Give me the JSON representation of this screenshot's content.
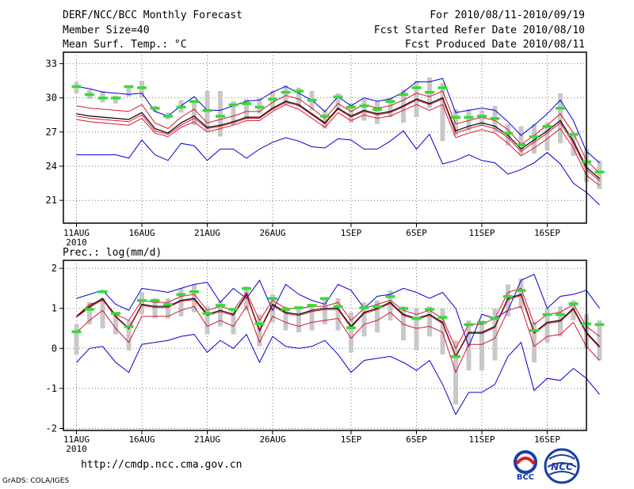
{
  "header": {
    "title": "DERF/NCC/BCC Monthly Forecast",
    "member_size": "Member Size=40",
    "variable1": "Mean Surf. Temp.: °C",
    "period": "For 2010/08/11-2010/09/19",
    "started": "Fcst Started Refer Date 2010/08/10",
    "produced": "Fcst Produced Date 2010/08/11"
  },
  "footer": {
    "url": "http://cmdp.ncc.cma.gov.cn",
    "credit": "GrADS: COLA/IGES",
    "logo_bcc": "BCC",
    "logo_ncc": "NCC"
  },
  "colors": {
    "max_min": "#0000d8",
    "percentile": "#d81830",
    "mean": "#000000",
    "spread_box": "#c8c8c8",
    "observed": "#33dd33",
    "grid": "#777777"
  },
  "chart_data": [
    {
      "type": "line",
      "title": "Mean Surf. Temp.: °C",
      "xlabel": "",
      "ylabel": "",
      "x_ticks": [
        {
          "day": 0,
          "label": "11AUG",
          "sub": "2010"
        },
        {
          "day": 5,
          "label": "16AUG"
        },
        {
          "day": 10,
          "label": "21AUG"
        },
        {
          "day": 15,
          "label": "26AUG"
        },
        {
          "day": 21,
          "label": "1SEP"
        },
        {
          "day": 26,
          "label": "6SEP"
        },
        {
          "day": 31,
          "label": "11SEP"
        },
        {
          "day": 36,
          "label": "16SEP"
        }
      ],
      "xlim": [
        -1,
        39
      ],
      "y_ticks": [
        21,
        24,
        27,
        30,
        33
      ],
      "ylim": [
        19,
        34
      ],
      "series": [
        {
          "name": "max",
          "role": "max_min",
          "values": [
            31.0,
            30.8,
            30.5,
            30.4,
            30.3,
            30.4,
            28.8,
            28.4,
            29.3,
            30.1,
            28.9,
            28.9,
            29.3,
            29.7,
            29.8,
            30.5,
            31.0,
            30.4,
            29.8,
            28.8,
            30.1,
            29.3,
            30.0,
            29.7,
            29.9,
            30.5,
            31.4,
            31.4,
            31.7,
            28.7,
            28.9,
            29.1,
            28.9,
            27.9,
            26.7,
            27.6,
            28.6,
            29.8,
            28.0,
            25.3,
            24.3
          ]
        },
        {
          "name": "p_upper",
          "role": "percentile",
          "values": [
            29.3,
            29.1,
            29.0,
            28.9,
            28.8,
            29.4,
            27.8,
            27.3,
            28.3,
            29.0,
            27.8,
            28.1,
            28.4,
            28.8,
            28.8,
            29.6,
            30.2,
            29.9,
            29.1,
            28.2,
            29.5,
            28.8,
            29.4,
            29.1,
            29.3,
            29.8,
            30.4,
            30.1,
            30.6,
            27.7,
            28.0,
            28.3,
            28.0,
            27.2,
            25.9,
            26.7,
            27.6,
            28.6,
            26.9,
            24.5,
            23.4
          ]
        },
        {
          "name": "mean",
          "role": "mean",
          "values": [
            28.6,
            28.4,
            28.3,
            28.2,
            28.1,
            28.7,
            27.3,
            26.9,
            27.8,
            28.4,
            27.4,
            27.6,
            27.9,
            28.3,
            28.3,
            29.1,
            29.7,
            29.4,
            28.6,
            27.8,
            29.1,
            28.4,
            28.9,
            28.6,
            28.8,
            29.3,
            29.9,
            29.5,
            30.0,
            27.1,
            27.5,
            27.8,
            27.5,
            26.7,
            25.5,
            26.3,
            27.1,
            28.0,
            26.2,
            23.9,
            22.9
          ]
        },
        {
          "name": "median",
          "role": "median",
          "values": [
            28.4,
            28.2,
            28.1,
            28.0,
            27.9,
            28.5,
            27.1,
            26.8,
            27.6,
            28.2,
            27.3,
            27.5,
            27.8,
            28.2,
            28.2,
            29.0,
            29.6,
            29.3,
            28.5,
            27.7,
            29.0,
            28.3,
            28.8,
            28.5,
            28.7,
            29.2,
            29.8,
            29.4,
            29.9,
            26.9,
            27.3,
            27.6,
            27.3,
            26.5,
            25.3,
            26.1,
            26.9,
            27.8,
            26.0,
            23.7,
            22.7
          ]
        },
        {
          "name": "p_lower",
          "role": "percentile",
          "values": [
            28.1,
            27.9,
            27.8,
            27.7,
            27.6,
            28.2,
            26.9,
            26.6,
            27.4,
            27.9,
            27.0,
            27.3,
            27.6,
            28.0,
            28.0,
            28.8,
            29.4,
            29.0,
            28.2,
            27.4,
            28.7,
            28.0,
            28.5,
            28.2,
            28.4,
            28.9,
            29.4,
            28.9,
            29.4,
            26.5,
            26.9,
            27.2,
            26.9,
            26.0,
            24.9,
            25.6,
            26.4,
            27.3,
            25.6,
            23.2,
            22.3
          ]
        },
        {
          "name": "min",
          "role": "max_min",
          "values": [
            25.0,
            25.0,
            25.0,
            25.0,
            24.7,
            26.3,
            25.0,
            24.5,
            26.0,
            25.8,
            24.5,
            25.5,
            25.5,
            24.7,
            25.5,
            26.1,
            26.5,
            26.2,
            25.7,
            25.6,
            26.4,
            26.3,
            25.5,
            25.5,
            26.2,
            27.1,
            25.5,
            26.8,
            24.2,
            24.5,
            25.0,
            24.5,
            24.3,
            23.3,
            23.7,
            24.3,
            25.2,
            24.2,
            22.5,
            21.7,
            20.6
          ]
        }
      ],
      "spread_boxes": [
        [
          30.4,
          31.4
        ],
        [
          29.9,
          30.7
        ],
        [
          29.6,
          30.6
        ],
        [
          29.5,
          30.2
        ],
        [
          30.1,
          30.9
        ],
        [
          30.0,
          31.5
        ],
        [
          28.8,
          29.3
        ],
        [
          28.1,
          28.7
        ],
        [
          28.7,
          29.8
        ],
        [
          27.6,
          29.8
        ],
        [
          27.1,
          30.6
        ],
        [
          26.6,
          30.6
        ],
        [
          27.6,
          29.7
        ],
        [
          28.1,
          29.9
        ],
        [
          28.6,
          30.0
        ],
        [
          28.9,
          30.6
        ],
        [
          29.4,
          31.1
        ],
        [
          29.2,
          30.9
        ],
        [
          28.9,
          30.6
        ],
        [
          27.3,
          28.9
        ],
        [
          28.9,
          30.4
        ],
        [
          27.8,
          29.5
        ],
        [
          28.0,
          29.9
        ],
        [
          27.7,
          29.7
        ],
        [
          28.3,
          30.0
        ],
        [
          27.8,
          30.7
        ],
        [
          28.3,
          31.5
        ],
        [
          29.1,
          31.8
        ],
        [
          26.2,
          31.3
        ],
        [
          26.7,
          29.0
        ],
        [
          27.1,
          29.0
        ],
        [
          27.5,
          28.9
        ],
        [
          27.0,
          29.3
        ],
        [
          25.8,
          27.7
        ],
        [
          25.0,
          27.5
        ],
        [
          25.1,
          27.7
        ],
        [
          25.4,
          27.8
        ],
        [
          26.0,
          30.4
        ],
        [
          24.9,
          26.8
        ],
        [
          22.6,
          25.5
        ],
        [
          22.0,
          24.5
        ]
      ],
      "observed": [
        31.0,
        30.3,
        30.0,
        30.0,
        31.0,
        30.9,
        29.1,
        28.4,
        29.2,
        29.7,
        28.9,
        28.4,
        29.4,
        29.5,
        29.2,
        29.9,
        30.5,
        30.6,
        29.8,
        28.4,
        30.1,
        29.2,
        29.3,
        29.0,
        29.7,
        30.3,
        30.9,
        30.5,
        30.9,
        28.3,
        28.3,
        28.4,
        28.2,
        26.9,
        25.9,
        26.6,
        27.5,
        29.1,
        26.8,
        24.4,
        23.5
      ]
    },
    {
      "type": "line",
      "title": "Prec.: log(mm/d)",
      "xlabel": "",
      "ylabel": "",
      "x_ticks": [
        {
          "day": 0,
          "label": "11AUG",
          "sub": "2010"
        },
        {
          "day": 5,
          "label": "16AUG"
        },
        {
          "day": 10,
          "label": "21AUG"
        },
        {
          "day": 15,
          "label": "26AUG"
        },
        {
          "day": 21,
          "label": "1SEP"
        },
        {
          "day": 26,
          "label": "6SEP"
        },
        {
          "day": 31,
          "label": "11SEP"
        },
        {
          "day": 36,
          "label": "16SEP"
        }
      ],
      "xlim": [
        -1,
        39
      ],
      "y_ticks": [
        -2,
        -1,
        0,
        1,
        2
      ],
      "ylim": [
        -2.05,
        2.2
      ],
      "series": [
        {
          "name": "max",
          "role": "max_min",
          "values": [
            1.25,
            1.35,
            1.45,
            1.1,
            0.95,
            1.5,
            1.45,
            1.4,
            1.5,
            1.6,
            1.65,
            1.15,
            1.5,
            1.25,
            1.7,
            0.95,
            1.6,
            1.35,
            1.2,
            1.1,
            1.6,
            1.45,
            1.0,
            1.3,
            1.35,
            1.5,
            1.4,
            1.25,
            1.4,
            1.0,
            0.05,
            0.85,
            0.75,
            0.95,
            1.7,
            1.85,
            1.0,
            1.3,
            1.35,
            1.45,
            1.0
          ]
        },
        {
          "name": "p_upper",
          "role": "percentile",
          "values": [
            0.8,
            1.1,
            1.2,
            0.85,
            0.7,
            1.2,
            1.15,
            1.15,
            1.3,
            1.35,
            0.95,
            1.05,
            0.95,
            1.4,
            0.7,
            1.2,
            1.0,
            1.0,
            1.05,
            1.05,
            1.15,
            0.7,
            1.0,
            1.1,
            1.2,
            0.95,
            0.85,
            0.95,
            0.75,
            0.0,
            0.6,
            0.6,
            0.75,
            1.4,
            1.5,
            0.6,
            0.85,
            0.9,
            1.1,
            0.55,
            0.3
          ]
        },
        {
          "name": "mean",
          "role": "mean",
          "values": [
            0.8,
            1.05,
            1.25,
            0.8,
            0.5,
            1.1,
            1.05,
            1.05,
            1.2,
            1.25,
            0.85,
            0.95,
            0.85,
            1.35,
            0.45,
            1.1,
            0.9,
            0.85,
            0.95,
            1.0,
            1.0,
            0.55,
            0.9,
            1.0,
            1.15,
            0.85,
            0.75,
            0.85,
            0.65,
            -0.2,
            0.4,
            0.4,
            0.55,
            1.25,
            1.35,
            0.4,
            0.65,
            0.7,
            1.0,
            0.4,
            0.05
          ]
        },
        {
          "name": "median",
          "role": "median",
          "values": [
            0.78,
            1.02,
            1.22,
            0.78,
            0.48,
            1.08,
            1.02,
            1.02,
            1.18,
            1.22,
            0.82,
            0.92,
            0.82,
            1.32,
            0.42,
            1.07,
            0.87,
            0.82,
            0.92,
            0.97,
            0.97,
            0.52,
            0.87,
            0.97,
            1.12,
            0.82,
            0.72,
            0.82,
            0.62,
            -0.22,
            0.37,
            0.37,
            0.52,
            1.22,
            1.32,
            0.37,
            0.62,
            0.67,
            0.97,
            0.37,
            0.02
          ]
        },
        {
          "name": "p_lower",
          "role": "percentile",
          "values": [
            0.4,
            0.7,
            0.95,
            0.5,
            0.15,
            0.8,
            0.8,
            0.8,
            0.95,
            1.05,
            0.55,
            0.7,
            0.55,
            1.05,
            0.15,
            0.8,
            0.65,
            0.55,
            0.65,
            0.7,
            0.75,
            0.25,
            0.6,
            0.7,
            0.9,
            0.6,
            0.5,
            0.55,
            0.4,
            -0.6,
            0.1,
            0.1,
            0.25,
            0.95,
            1.05,
            0.05,
            0.3,
            0.35,
            0.65,
            0.05,
            -0.3
          ]
        },
        {
          "name": "min",
          "role": "max_min",
          "values": [
            -0.35,
            0.0,
            0.05,
            -0.35,
            -0.6,
            0.1,
            0.15,
            0.2,
            0.3,
            0.35,
            -0.1,
            0.2,
            0.0,
            0.35,
            -0.35,
            0.3,
            0.05,
            0.0,
            0.05,
            0.2,
            -0.15,
            -0.6,
            -0.3,
            -0.25,
            -0.2,
            -0.35,
            -0.55,
            -0.3,
            -0.9,
            -1.65,
            -1.1,
            -1.1,
            -0.9,
            -0.2,
            0.15,
            -1.05,
            -0.75,
            -0.8,
            -0.5,
            -0.75,
            -1.15
          ]
        }
      ],
      "spread_boxes": [
        [
          -0.15,
          0.6
        ],
        [
          0.6,
          1.15
        ],
        [
          0.5,
          1.25
        ],
        [
          0.35,
          0.9
        ],
        [
          -0.05,
          0.7
        ],
        [
          0.85,
          1.4
        ],
        [
          0.75,
          1.25
        ],
        [
          0.75,
          1.25
        ],
        [
          0.8,
          1.5
        ],
        [
          0.9,
          1.6
        ],
        [
          0.35,
          1.05
        ],
        [
          0.55,
          1.2
        ],
        [
          0.35,
          1.0
        ],
        [
          0.95,
          1.55
        ],
        [
          0.05,
          0.85
        ],
        [
          0.65,
          1.35
        ],
        [
          0.45,
          1.05
        ],
        [
          0.4,
          1.05
        ],
        [
          0.45,
          1.1
        ],
        [
          0.6,
          1.25
        ],
        [
          0.45,
          1.25
        ],
        [
          -0.1,
          0.9
        ],
        [
          0.3,
          1.15
        ],
        [
          0.4,
          1.2
        ],
        [
          0.7,
          1.45
        ],
        [
          0.2,
          1.05
        ],
        [
          -0.05,
          1.0
        ],
        [
          0.3,
          1.05
        ],
        [
          -0.15,
          1.0
        ],
        [
          -1.4,
          0.2
        ],
        [
          -0.55,
          0.7
        ],
        [
          -0.55,
          0.7
        ],
        [
          -0.3,
          1.0
        ],
        [
          0.8,
          1.6
        ],
        [
          1.0,
          1.75
        ],
        [
          -0.35,
          0.65
        ],
        [
          0.15,
          1.0
        ],
        [
          0.3,
          1.05
        ],
        [
          0.7,
          1.2
        ],
        [
          0.0,
          0.85
        ],
        [
          -0.3,
          0.7
        ]
      ],
      "observed": [
        0.42,
        0.98,
        1.42,
        0.88,
        0.55,
        1.2,
        1.2,
        1.1,
        1.35,
        1.42,
        0.88,
        1.08,
        0.98,
        1.5,
        0.62,
        1.25,
        0.98,
        1.02,
        1.08,
        1.25,
        1.05,
        0.52,
        1.02,
        1.05,
        1.3,
        1.0,
        0.75,
        0.98,
        0.78,
        -0.2,
        0.6,
        0.65,
        0.75,
        1.3,
        1.45,
        0.45,
        0.85,
        0.85,
        1.12,
        0.62,
        0.6
      ]
    }
  ]
}
